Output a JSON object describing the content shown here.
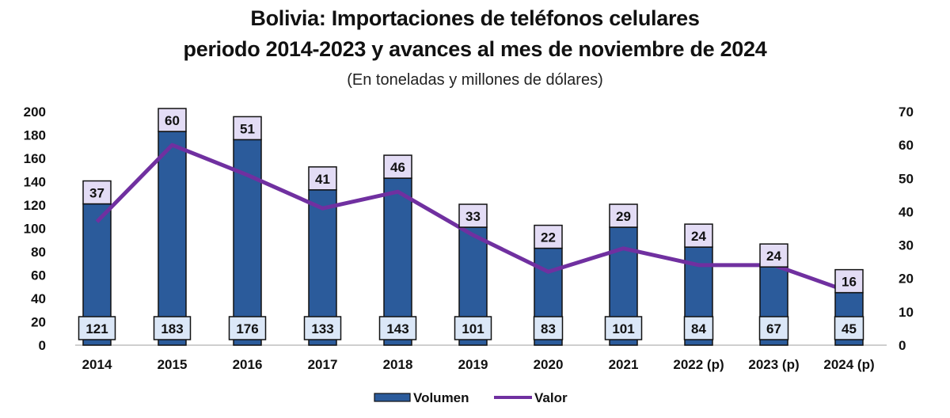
{
  "chart_data": {
    "type": "bar",
    "title": "Bolivia: Importaciones de teléfonos celulares",
    "title_line2": "periodo 2014-2023 y avances al mes de noviembre de 2024",
    "subtitle": "(En toneladas y millones de dólares)",
    "categories": [
      "2014",
      "2015",
      "2016",
      "2017",
      "2018",
      "2019",
      "2020",
      "2021",
      "2022 (p)",
      "2023 (p)",
      "2024 (p)"
    ],
    "series": [
      {
        "name": "Volumen",
        "type": "bar",
        "axis": "left",
        "color": "#2b5b9b",
        "values": [
          121,
          183,
          176,
          133,
          143,
          101,
          83,
          101,
          84,
          67,
          45
        ]
      },
      {
        "name": "Valor",
        "type": "line",
        "axis": "right",
        "color": "#7030a0",
        "values": [
          37,
          60,
          51,
          41,
          46,
          33,
          22,
          29,
          24,
          24,
          16
        ]
      }
    ],
    "y_left": {
      "min": 0,
      "max": 200,
      "ticks": [
        0,
        20,
        40,
        60,
        80,
        100,
        120,
        140,
        160,
        180,
        200
      ]
    },
    "y_right": {
      "min": 0,
      "max": 70,
      "ticks": [
        0,
        10,
        20,
        30,
        40,
        50,
        60,
        70
      ]
    },
    "xlabel": "",
    "ylabel": "",
    "grid": false,
    "legend": {
      "position": "bottom",
      "entries": [
        "Volumen",
        "Valor"
      ]
    },
    "colors": {
      "bar": "#2b5b9b",
      "line": "#7030a0",
      "bar_label_bg": "#dbe7f7",
      "line_label_bg": "#e3dcf5"
    }
  }
}
